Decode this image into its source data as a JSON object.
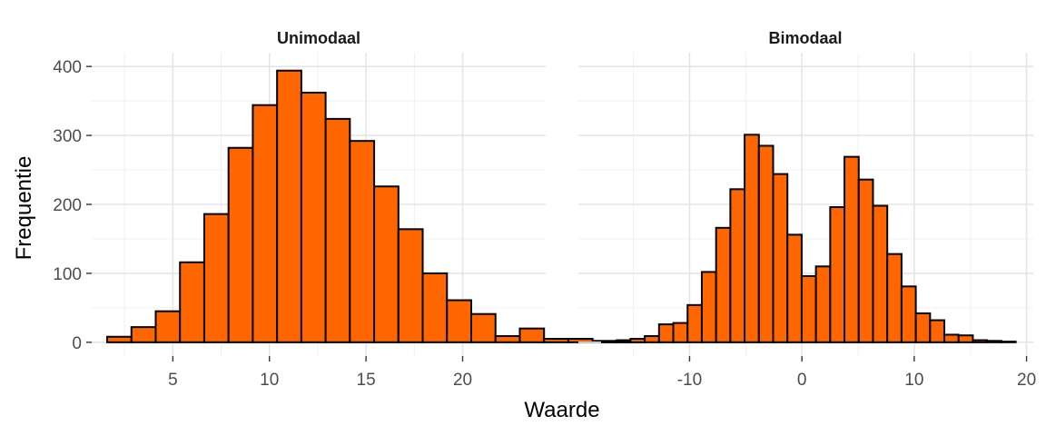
{
  "chart_data": {
    "type": "bar",
    "xlabel": "Waarde",
    "ylabel": "Frequentie",
    "ylim": [
      -20,
      420
    ],
    "yticks": [
      0,
      100,
      200,
      300,
      400
    ],
    "bar_color": "#FF6600",
    "bar_outline": "#000000",
    "panels": [
      {
        "title": "Unimodaal",
        "xlim": [
          0.8,
          24.3
        ],
        "xticks": [
          5,
          10,
          15,
          20
        ],
        "xticklabels": [
          "5",
          "10",
          "15",
          "20"
        ],
        "bin_start": 1.6,
        "bin_width": 1.2564,
        "values": [
          8,
          22,
          45,
          116,
          186,
          282,
          344,
          394,
          362,
          324,
          292,
          226,
          164,
          100,
          61,
          41,
          9,
          20,
          5,
          5,
          2,
          3
        ]
      },
      {
        "title": "Bimodaal",
        "xlim": [
          -19.9,
          20.6
        ],
        "xticks": [
          -10,
          0,
          10,
          20
        ],
        "xticklabels": [
          "-10",
          "0",
          "10",
          "20"
        ],
        "bin_start": -17.8,
        "bin_width": 1.27,
        "values": [
          1,
          2,
          5,
          9,
          26,
          28,
          54,
          102,
          166,
          222,
          301,
          285,
          244,
          156,
          96,
          110,
          196,
          269,
          236,
          198,
          128,
          81,
          42,
          32,
          11,
          10,
          3,
          2,
          1
        ]
      }
    ]
  }
}
